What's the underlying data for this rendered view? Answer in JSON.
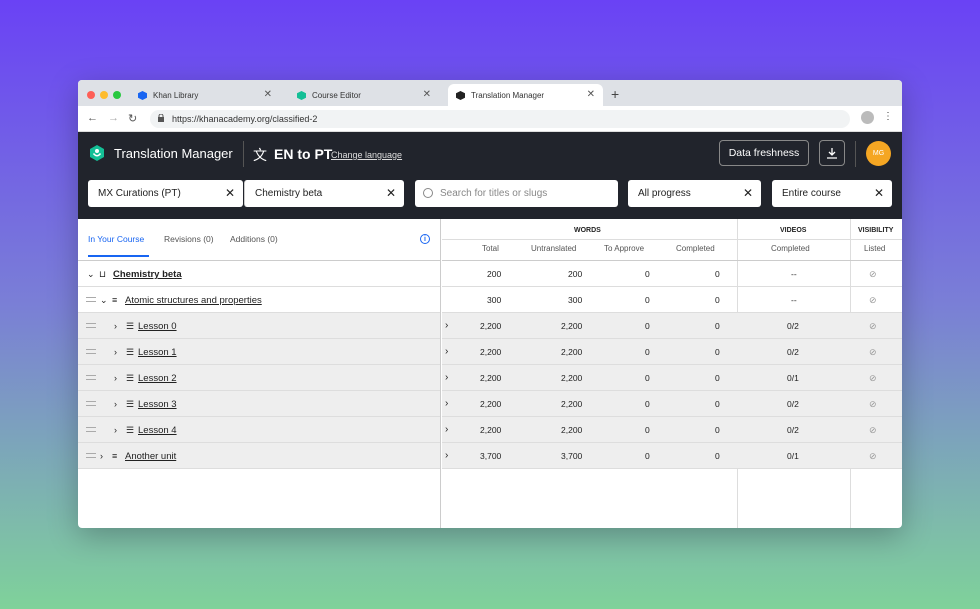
{
  "browser": {
    "tabs": [
      {
        "label": "Khan Library",
        "close": "✕"
      },
      {
        "label": "Course Editor",
        "close": "✕"
      },
      {
        "label": "Translation Manager",
        "close": "✕"
      }
    ],
    "new_tab": "+",
    "url": "https://khanacademy.org/classified-2"
  },
  "app": {
    "title": "Translation Manager",
    "language": "EN to PT",
    "change_language": "Change language",
    "data_freshness": "Data freshness",
    "avatar_initials": "MG"
  },
  "filters": {
    "curation": "MX Curations (PT)",
    "course": "Chemistry beta",
    "search_placeholder": "Search for titles or slugs",
    "progress": "All progress",
    "scope": "Entire course",
    "clear": "✕"
  },
  "left_tabs": {
    "in_course": "In Your Course",
    "revisions": "Revisions (0)",
    "additions": "Additions (0)",
    "info": "i"
  },
  "table_headers": {
    "words": "WORDS",
    "videos": "VIDEOS",
    "visibility": "VISIBILITY",
    "total": "Total",
    "untranslated": "Untranslated",
    "to_approve": "To Approve",
    "completed": "Completed",
    "videos_completed": "Completed",
    "listed": "Listed"
  },
  "rows": [
    {
      "name": "Chemistry beta",
      "total": "200",
      "untranslated": "200",
      "approve": "0",
      "completed": "0",
      "videos": "--"
    },
    {
      "name": "Atomic structures and properties",
      "total": "300",
      "untranslated": "300",
      "approve": "0",
      "completed": "0",
      "videos": "--"
    },
    {
      "name": "Lesson 0",
      "total": "2,200",
      "untranslated": "2,200",
      "approve": "0",
      "completed": "0",
      "videos": "0/2"
    },
    {
      "name": "Lesson 1",
      "total": "2,200",
      "untranslated": "2,200",
      "approve": "0",
      "completed": "0",
      "videos": "0/2"
    },
    {
      "name": "Lesson 2",
      "total": "2,200",
      "untranslated": "2,200",
      "approve": "0",
      "completed": "0",
      "videos": "0/1"
    },
    {
      "name": "Lesson 3",
      "total": "2,200",
      "untranslated": "2,200",
      "approve": "0",
      "completed": "0",
      "videos": "0/2"
    },
    {
      "name": "Lesson 4",
      "total": "2,200",
      "untranslated": "2,200",
      "approve": "0",
      "completed": "0",
      "videos": "0/2"
    },
    {
      "name": "Another unit",
      "total": "3,700",
      "untranslated": "3,700",
      "approve": "0",
      "completed": "0",
      "videos": "0/1"
    }
  ],
  "icons": {
    "accent": "#1865f2",
    "header_bg": "#21242c",
    "avatar_bg": "#f5a623"
  }
}
